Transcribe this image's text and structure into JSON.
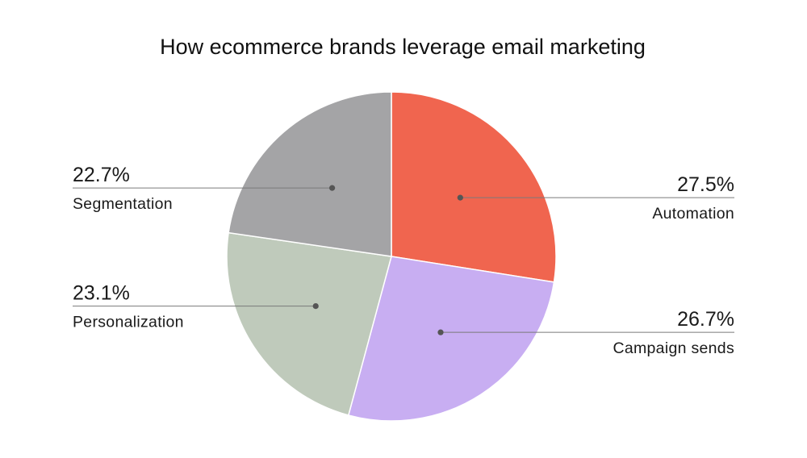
{
  "chart_data": {
    "type": "pie",
    "title": "How ecommerce brands leverage email marketing",
    "slices": [
      {
        "label": "Automation",
        "value": 27.5,
        "display": "27.5%",
        "color": "#f0654f"
      },
      {
        "label": "Campaign sends",
        "value": 26.7,
        "display": "26.7%",
        "color": "#c8aef2"
      },
      {
        "label": "Personalization",
        "value": 23.1,
        "display": "23.1%",
        "color": "#bfcabb"
      },
      {
        "label": "Segmentation",
        "value": 22.7,
        "display": "22.7%",
        "color": "#a4a4a6"
      }
    ],
    "start_angle": "12 o'clock",
    "direction": "clockwise",
    "legend": "none",
    "label_placement": "callout lines to left and right"
  }
}
